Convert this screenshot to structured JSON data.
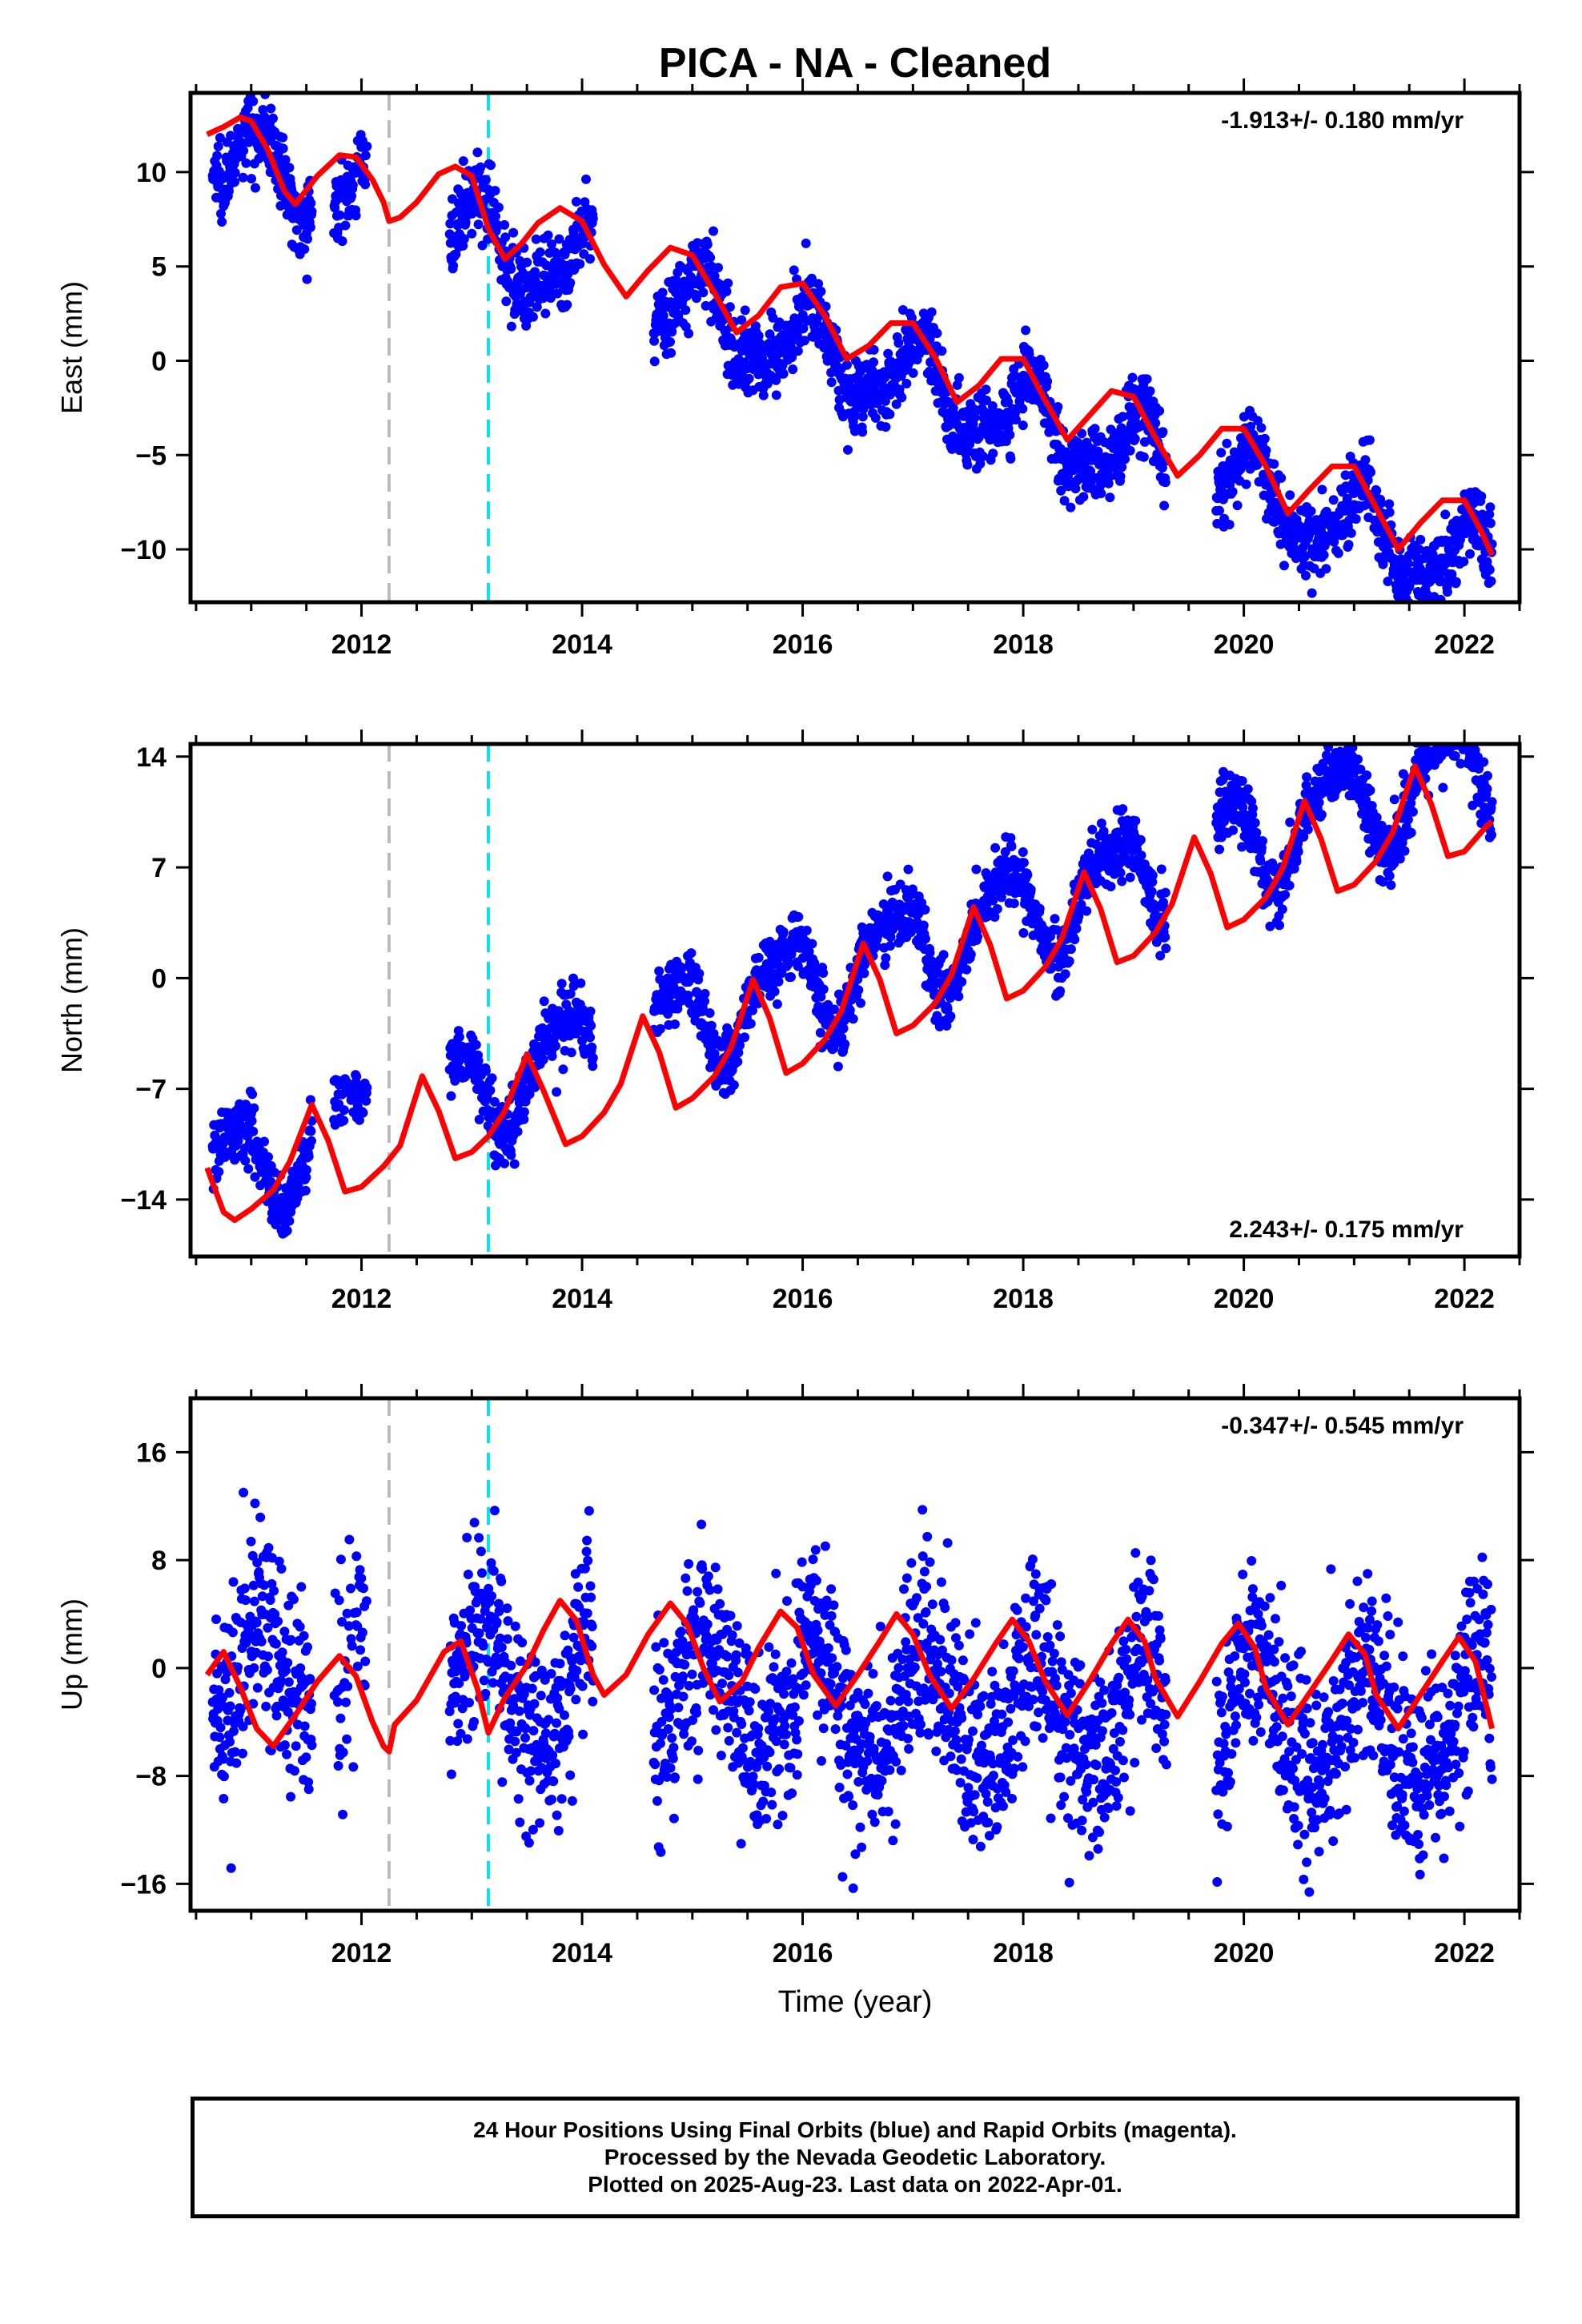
{
  "chart_data": {
    "type": "scatter",
    "title": "PICA  - NA - Cleaned",
    "xlabel": "Time (year)",
    "xlim": [
      2010.45,
      2022.5
    ],
    "x_ticks": [
      2012,
      2014,
      2016,
      2018,
      2020,
      2022
    ],
    "x_tick_labels": [
      "2012",
      "2014",
      "2016",
      "2018",
      "2020",
      "2022"
    ],
    "vertical_markers": [
      {
        "x": 2012.25,
        "color": "#bbbbbb"
      },
      {
        "x": 2013.15,
        "color": "#00e5ee"
      }
    ],
    "colors": {
      "points": "#0000ff",
      "model": "#ff0000"
    },
    "panels": [
      {
        "ylabel": "East (mm)",
        "ylim": [
          -12.8,
          14.2
        ],
        "yticks": [
          10,
          5,
          0,
          -5,
          -10
        ],
        "ytick_labels": [
          "10",
          "5",
          "0",
          "−5",
          "−10"
        ],
        "velocity": "-1.913+/- 0.180 mm/yr",
        "velocity_position": "top-right",
        "rate": -1.913,
        "offset": 11.1,
        "amp_annual": 2.0,
        "phase_annual": 1.2,
        "amp_semi": 0.6,
        "phase_semi": 0.3,
        "noise": 1.0,
        "model": {
          "x": [
            2010.6,
            2010.75,
            2010.9,
            2011.0,
            2011.15,
            2011.3,
            2011.4,
            2011.6,
            2011.8,
            2011.95,
            2012.1,
            2012.2,
            2012.25,
            2012.35,
            2012.5,
            2012.7,
            2012.85,
            2013.0,
            2013.15,
            2013.3,
            2013.45,
            2013.6,
            2013.8,
            2014.0,
            2014.2,
            2014.4,
            2014.6,
            2014.8,
            2015.0,
            2015.2,
            2015.4,
            2015.6,
            2015.8,
            2016.0,
            2016.2,
            2016.4,
            2016.6,
            2016.8,
            2017.0,
            2017.2,
            2017.4,
            2017.6,
            2017.8,
            2018.0,
            2018.2,
            2018.4,
            2018.6,
            2018.8,
            2019.0,
            2019.2,
            2019.4,
            2019.6,
            2019.8,
            2020.0,
            2020.2,
            2020.4,
            2020.6,
            2020.8,
            2021.0,
            2021.2,
            2021.4,
            2021.6,
            2021.8,
            2022.0,
            2022.15,
            2022.25
          ],
          "y": [
            12.0,
            12.4,
            12.9,
            12.7,
            11.2,
            9.0,
            8.3,
            9.8,
            10.9,
            10.8,
            9.6,
            8.4,
            7.4,
            7.6,
            8.4,
            9.9,
            10.3,
            9.8,
            7.0,
            5.4,
            6.2,
            7.3,
            8.1,
            7.4,
            5.1,
            3.4,
            4.8,
            6.0,
            5.6,
            3.6,
            1.5,
            2.4,
            3.9,
            4.1,
            2.4,
            0.1,
            0.8,
            2.0,
            2.0,
            0.2,
            -2.2,
            -1.3,
            0.1,
            0.1,
            -2.1,
            -4.2,
            -2.9,
            -1.6,
            -1.9,
            -4.1,
            -6.1,
            -5.0,
            -3.6,
            -3.6,
            -5.6,
            -8.1,
            -6.8,
            -5.6,
            -5.6,
            -7.8,
            -10.0,
            -8.6,
            -7.4,
            -7.4,
            -9.0,
            -10.3
          ]
        }
      },
      {
        "ylabel": "North (mm)",
        "ylim": [
          -17.6,
          14.8
        ],
        "yticks": [
          14,
          7,
          0,
          -7,
          -14
        ],
        "ytick_labels": [
          "14",
          "7",
          "0",
          "−7",
          "−14"
        ],
        "velocity": "2.243+/- 0.175 mm/yr",
        "velocity_position": "bottom-right",
        "rate": 2.243,
        "offset": -12.4,
        "amp_annual": 3.0,
        "phase_annual": 2.7,
        "amp_semi": 0.8,
        "phase_semi": 1.1,
        "noise": 1.0,
        "model": {
          "x": [
            2010.6,
            2010.75,
            2010.85,
            2011.0,
            2011.2,
            2011.35,
            2011.55,
            2011.7,
            2011.85,
            2012.0,
            2012.2,
            2012.35,
            2012.55,
            2012.7,
            2012.85,
            2013.0,
            2013.15,
            2013.3,
            2013.5,
            2013.65,
            2013.85,
            2014.0,
            2014.2,
            2014.35,
            2014.55,
            2014.7,
            2014.85,
            2015.0,
            2015.2,
            2015.35,
            2015.55,
            2015.7,
            2015.85,
            2016.0,
            2016.2,
            2016.35,
            2016.55,
            2016.7,
            2016.85,
            2017.0,
            2017.2,
            2017.35,
            2017.55,
            2017.7,
            2017.85,
            2018.0,
            2018.2,
            2018.35,
            2018.55,
            2018.7,
            2018.85,
            2019.0,
            2019.2,
            2019.35,
            2019.55,
            2019.7,
            2019.85,
            2020.0,
            2020.2,
            2020.35,
            2020.55,
            2020.7,
            2020.85,
            2021.0,
            2021.2,
            2021.35,
            2021.55,
            2021.7,
            2021.85,
            2022.0,
            2022.2,
            2022.25
          ],
          "y": [
            -12.0,
            -14.8,
            -15.3,
            -14.6,
            -13.4,
            -11.6,
            -8.0,
            -10.3,
            -13.5,
            -13.2,
            -11.9,
            -10.6,
            -6.2,
            -8.4,
            -11.4,
            -11.0,
            -10.0,
            -8.4,
            -4.8,
            -7.1,
            -10.5,
            -10.0,
            -8.5,
            -6.7,
            -2.4,
            -4.7,
            -8.2,
            -7.6,
            -6.2,
            -4.4,
            -0.1,
            -2.5,
            -6.0,
            -5.4,
            -3.9,
            -2.1,
            2.2,
            -0.1,
            -3.5,
            -3.0,
            -1.6,
            0.2,
            4.5,
            2.1,
            -1.3,
            -0.8,
            0.7,
            2.5,
            6.7,
            4.4,
            1.0,
            1.4,
            2.9,
            4.7,
            8.9,
            6.6,
            3.2,
            3.7,
            5.1,
            6.9,
            11.2,
            8.8,
            5.5,
            5.9,
            7.4,
            9.2,
            13.4,
            11.0,
            7.7,
            8.0,
            9.6,
            9.9
          ]
        }
      },
      {
        "ylabel": "Up (mm)",
        "ylim": [
          -18,
          20
        ],
        "yticks": [
          16,
          8,
          0,
          -8,
          -16
        ],
        "ytick_labels": [
          "16",
          "8",
          "0",
          "−8",
          "−16"
        ],
        "velocity": "-0.347+/- 0.545 mm/yr",
        "velocity_position": "top-right",
        "rate": -0.347,
        "offset": -0.5,
        "amp_annual": 4.2,
        "phase_annual": 0.9,
        "amp_semi": 0.7,
        "phase_semi": 0.4,
        "noise": 3.5,
        "model": {
          "x": [
            2010.6,
            2010.75,
            2010.9,
            2011.05,
            2011.2,
            2011.4,
            2011.6,
            2011.8,
            2011.95,
            2012.1,
            2012.2,
            2012.25,
            2012.3,
            2012.5,
            2012.75,
            2012.9,
            2013.05,
            2013.15,
            2013.3,
            2013.5,
            2013.65,
            2013.8,
            2013.95,
            2014.1,
            2014.2,
            2014.4,
            2014.6,
            2014.8,
            2014.95,
            2015.1,
            2015.25,
            2015.45,
            2015.6,
            2015.8,
            2015.95,
            2016.1,
            2016.3,
            2016.5,
            2016.7,
            2016.85,
            2017.0,
            2017.15,
            2017.35,
            2017.55,
            2017.75,
            2017.9,
            2018.05,
            2018.2,
            2018.4,
            2018.6,
            2018.8,
            2018.95,
            2019.1,
            2019.2,
            2019.4,
            2019.6,
            2019.8,
            2019.95,
            2020.1,
            2020.2,
            2020.4,
            2020.6,
            2020.8,
            2020.95,
            2021.1,
            2021.2,
            2021.4,
            2021.6,
            2021.8,
            2021.95,
            2022.1,
            2022.25
          ],
          "y": [
            -0.5,
            1.2,
            -1.4,
            -4.5,
            -5.8,
            -3.5,
            -1.0,
            0.9,
            -0.6,
            -4.0,
            -5.8,
            -6.2,
            -4.2,
            -2.4,
            1.2,
            2.0,
            -1.5,
            -4.8,
            -2.2,
            0.2,
            2.8,
            5.0,
            3.5,
            -0.5,
            -2.0,
            -0.5,
            2.5,
            4.8,
            3.3,
            0.0,
            -2.5,
            -1.0,
            1.5,
            4.2,
            3.0,
            -0.5,
            -2.8,
            -0.5,
            2.0,
            4.0,
            2.5,
            -0.5,
            -3.0,
            -0.8,
            1.8,
            3.6,
            2.0,
            -1.0,
            -3.5,
            -1.0,
            1.8,
            3.6,
            2.0,
            -0.8,
            -3.6,
            -1.0,
            1.8,
            3.3,
            1.5,
            -1.5,
            -4.2,
            -1.8,
            0.6,
            2.5,
            1.0,
            -2.0,
            -4.5,
            -2.0,
            0.5,
            2.3,
            0.5,
            -4.5
          ]
        }
      }
    ],
    "data_segments": [
      [
        2010.65,
        2011.55,
        1.0
      ],
      [
        2011.75,
        2012.05,
        0.75
      ],
      [
        2012.8,
        2014.1,
        1.0
      ],
      [
        2014.65,
        2019.3,
        1.0
      ],
      [
        2019.75,
        2022.25,
        1.0
      ]
    ]
  },
  "footer": {
    "line1": "24 Hour Positions Using Final Orbits (blue) and Rapid Orbits (magenta).",
    "line2": "Processed by the Nevada Geodetic Laboratory.",
    "line3": "Plotted on 2025-Aug-23. Last data on 2022-Apr-01."
  }
}
